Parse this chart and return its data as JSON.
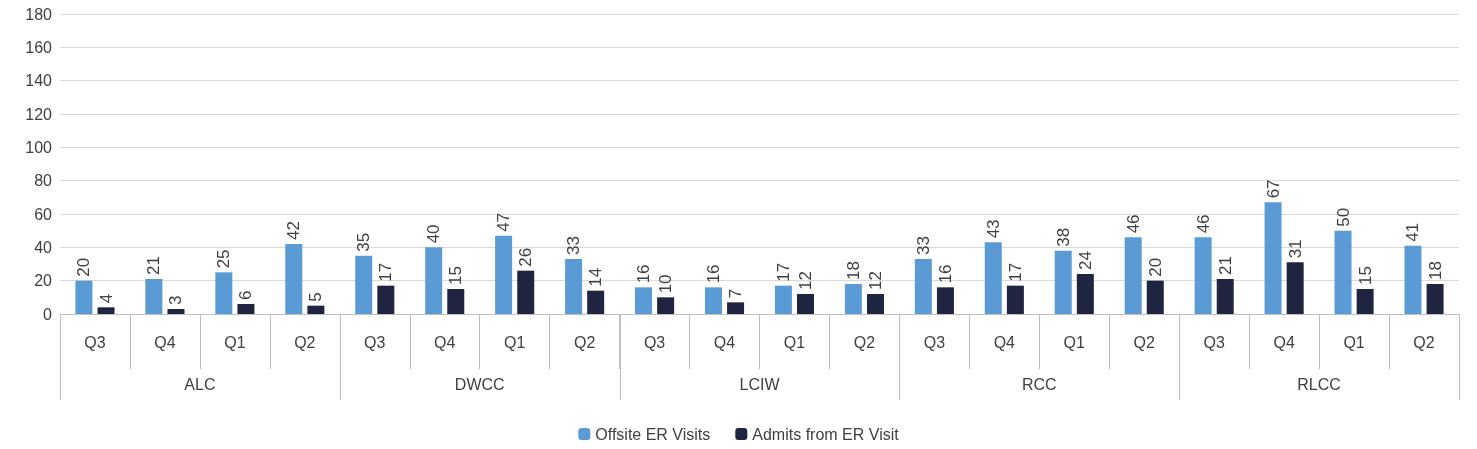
{
  "chart_data": {
    "type": "bar",
    "categories": [
      "Q3",
      "Q4",
      "Q1",
      "Q2",
      "Q3",
      "Q4",
      "Q1",
      "Q2",
      "Q3",
      "Q4",
      "Q1",
      "Q2",
      "Q3",
      "Q4",
      "Q1",
      "Q2",
      "Q3",
      "Q4",
      "Q1",
      "Q2"
    ],
    "annotations": [
      "ALC",
      "DWCC",
      "LCIW",
      "RCC",
      "RLCC"
    ],
    "series": [
      {
        "name": "Offsite ER Visits",
        "color": "#5b9bd5",
        "values": [
          20,
          21,
          25,
          42,
          35,
          40,
          47,
          33,
          16,
          16,
          17,
          18,
          33,
          43,
          38,
          46,
          46,
          67,
          50,
          41
        ]
      },
      {
        "name": "Admits from ER Visit",
        "color": "#1f2440",
        "values": [
          4,
          3,
          6,
          5,
          17,
          15,
          26,
          14,
          10,
          7,
          12,
          12,
          16,
          17,
          24,
          20,
          21,
          31,
          15,
          18
        ]
      }
    ],
    "ylim": [
      0,
      180
    ],
    "yticks": [
      0,
      20,
      40,
      60,
      80,
      100,
      120,
      140,
      160,
      180
    ],
    "grid": "y",
    "legend": "bottom",
    "data_labels": true
  }
}
